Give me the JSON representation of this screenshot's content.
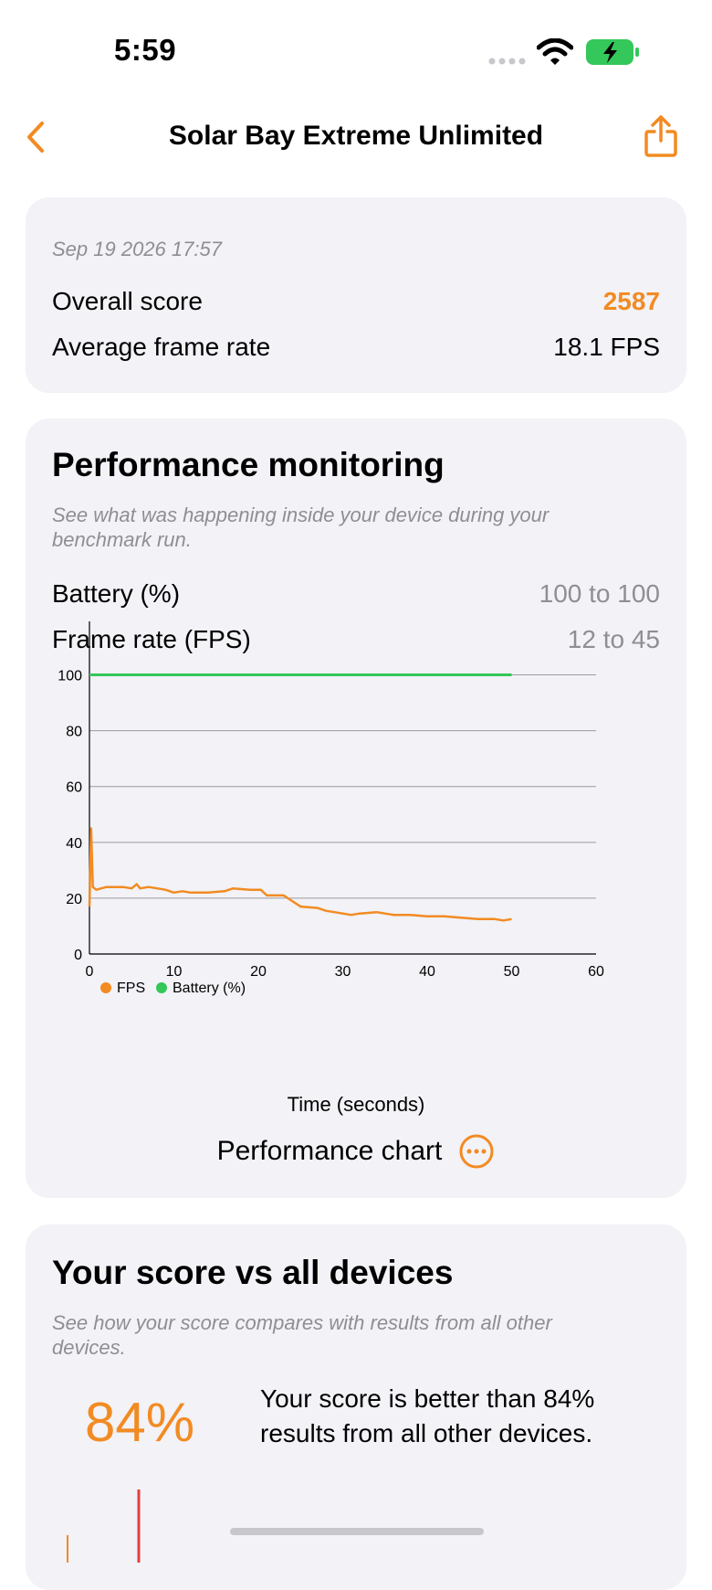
{
  "status_bar": {
    "time": "5:59"
  },
  "nav": {
    "title": "Solar Bay Extreme Unlimited"
  },
  "summary": {
    "date": "Sep 19 2026 17:57",
    "overall_label": "Overall score",
    "overall_value": "2587",
    "fps_label": "Average frame rate",
    "fps_value": "18.1 FPS"
  },
  "performance": {
    "title": "Performance monitoring",
    "subtitle": "See what was happening inside your device during your benchmark run.",
    "battery_label": "Battery (%)",
    "battery_range": "100 to 100",
    "fps_label": "Frame rate (FPS)",
    "fps_range": "12 to 45",
    "xlabel": "Time (seconds)",
    "chart_button_label": "Performance chart"
  },
  "chart_data": {
    "type": "line",
    "xlabel": "Time (seconds)",
    "ylabel": "",
    "xlim": [
      0,
      60
    ],
    "ylim": [
      0,
      110
    ],
    "xticks": [
      0,
      10,
      20,
      30,
      40,
      50,
      60
    ],
    "yticks": [
      0,
      20,
      40,
      60,
      80,
      100
    ],
    "grid": true,
    "legend": "bottom-left",
    "series": [
      {
        "name": "FPS",
        "color": "#f28b22",
        "x": [
          0,
          0.2,
          0.4,
          0.8,
          2,
          4,
          5,
          5.6,
          6,
          7,
          9,
          10,
          11,
          12,
          14,
          16,
          17,
          19,
          20,
          20.3,
          21,
          23,
          24,
          25,
          27,
          28,
          30,
          31,
          32,
          34,
          36,
          38,
          40,
          42,
          44,
          46,
          48,
          49,
          50
        ],
        "values": [
          17,
          45,
          24,
          23,
          24,
          24,
          23.5,
          25,
          23.5,
          24,
          23,
          22,
          22.5,
          22,
          22,
          22.5,
          23.5,
          23,
          23,
          23,
          21,
          21,
          19,
          17,
          16.5,
          15.5,
          14.5,
          14,
          14.5,
          15,
          14,
          14,
          13.5,
          13.5,
          13,
          12.5,
          12.5,
          12,
          12.5
        ]
      },
      {
        "name": "Battery (%)",
        "color": "#34c759",
        "x": [
          0,
          50
        ],
        "values": [
          100,
          100
        ]
      }
    ]
  },
  "comparison": {
    "title": "Your score vs all devices",
    "subtitle": "See how your score compares with results from all other devices.",
    "percent": "84%",
    "text": "Your score is better than 84% results from all other devices."
  },
  "colors": {
    "accent": "#f28b22",
    "battery": "#34c759",
    "card": "#f2f2f7"
  }
}
